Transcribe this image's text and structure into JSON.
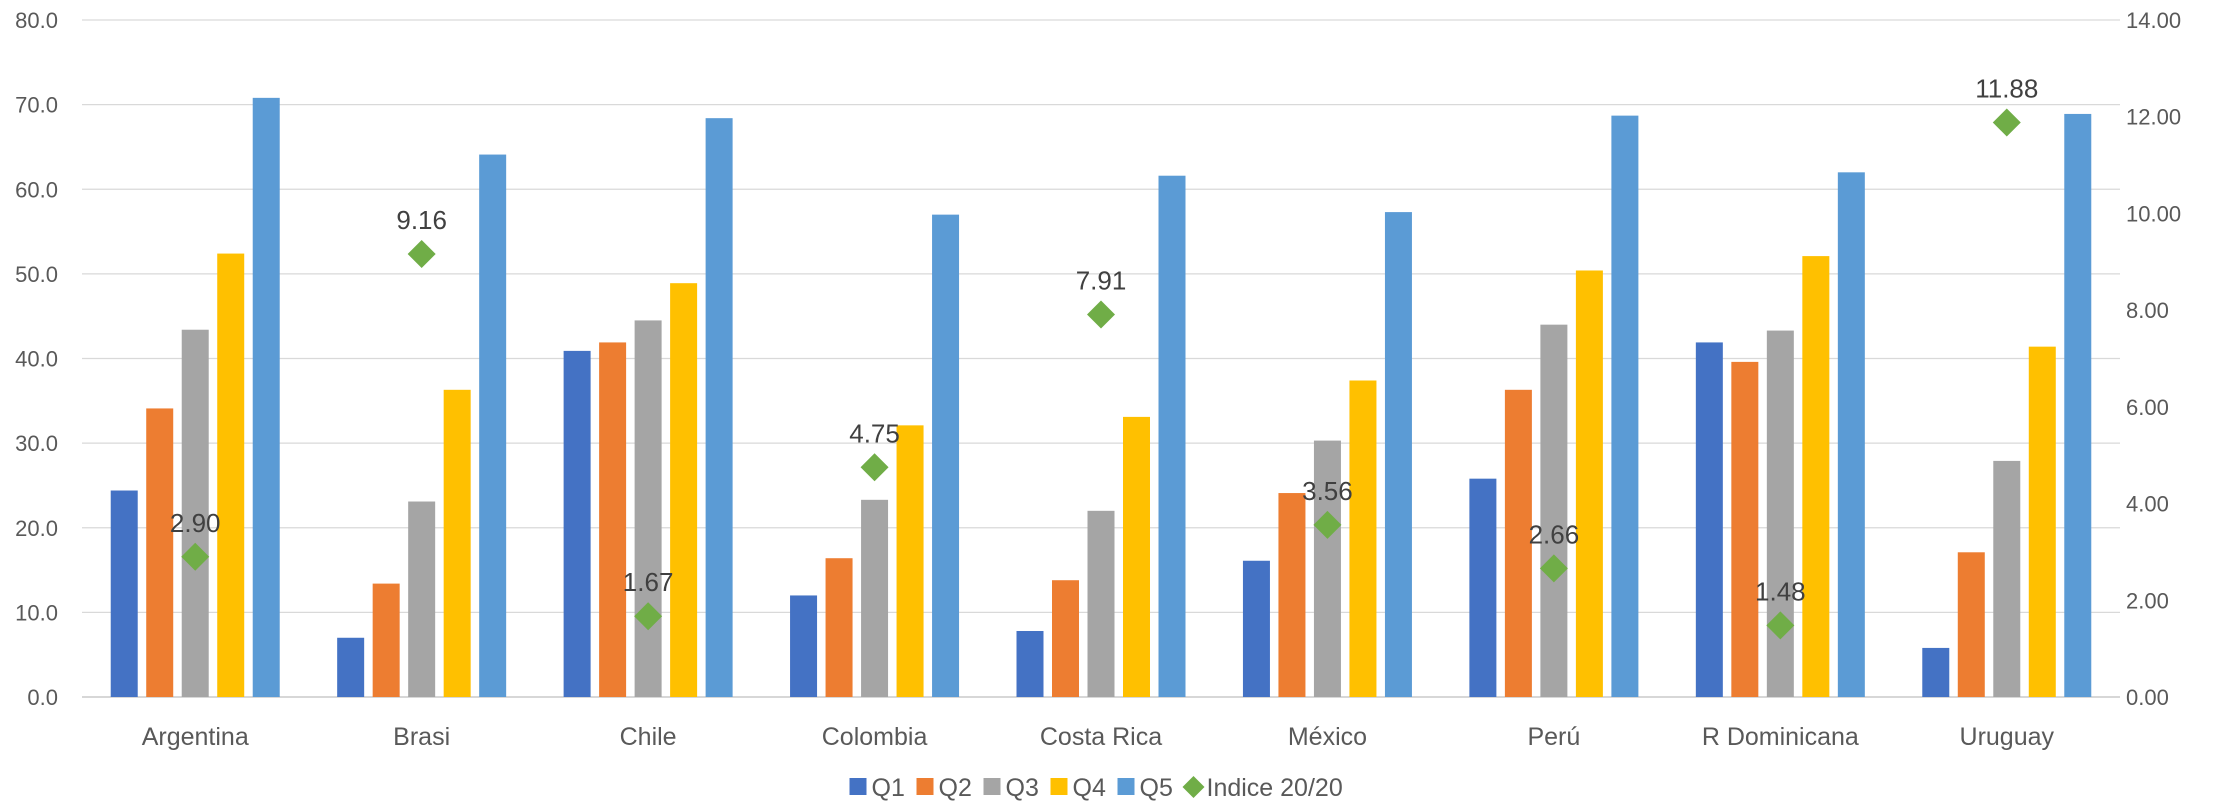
{
  "chart_data": {
    "type": "bar",
    "categories": [
      "Argentina",
      "Brasi",
      "Chile",
      "Colombia",
      "Costa Rica",
      "México",
      "Perú",
      "R Dominicana",
      "Uruguay"
    ],
    "series": [
      {
        "name": "Q1",
        "type": "bar",
        "axis": "left",
        "color": "#4472C4",
        "values": [
          24.4,
          7.0,
          40.9,
          12.0,
          7.8,
          16.1,
          25.8,
          41.9,
          5.8
        ]
      },
      {
        "name": "Q2",
        "type": "bar",
        "axis": "left",
        "color": "#ED7D31",
        "values": [
          34.1,
          13.4,
          41.9,
          16.4,
          13.8,
          24.1,
          36.3,
          39.6,
          17.1
        ]
      },
      {
        "name": "Q3",
        "type": "bar",
        "axis": "left",
        "color": "#A5A5A5",
        "values": [
          43.4,
          23.1,
          44.5,
          23.3,
          22.0,
          30.3,
          44.0,
          43.3,
          27.9
        ]
      },
      {
        "name": "Q4",
        "type": "bar",
        "axis": "left",
        "color": "#FFC000",
        "values": [
          52.4,
          36.3,
          48.9,
          32.1,
          33.1,
          37.4,
          50.4,
          52.1,
          41.4
        ]
      },
      {
        "name": "Q5",
        "type": "bar",
        "axis": "left",
        "color": "#5B9BD5",
        "values": [
          70.8,
          64.1,
          68.4,
          57.0,
          61.6,
          57.3,
          68.7,
          62.0,
          68.9
        ]
      },
      {
        "name": "Indice 20/20",
        "type": "scatter",
        "axis": "right",
        "color": "#70AD47",
        "values": [
          2.9,
          9.16,
          1.67,
          4.75,
          7.91,
          3.56,
          2.66,
          1.48,
          11.88
        ],
        "labels": [
          "2.90",
          "9.16",
          "1.67",
          "4.75",
          "7.91",
          "3.56",
          "2.66",
          "1.48",
          "11.88"
        ]
      }
    ],
    "ylim": [
      0,
      80
    ],
    "y_ticks": [
      "0.0",
      "10.0",
      "20.0",
      "30.0",
      "40.0",
      "50.0",
      "60.0",
      "70.0",
      "80.0"
    ],
    "y2lim": [
      0,
      14
    ],
    "y2_ticks": [
      "0.00",
      "2.00",
      "4.00",
      "6.00",
      "8.00",
      "10.00",
      "12.00",
      "14.00"
    ],
    "grid": true,
    "legend_position": "bottom-center",
    "colors": {
      "grid": "#D9D9D9",
      "axis_text": "#595959",
      "data_label": "#404040"
    }
  }
}
